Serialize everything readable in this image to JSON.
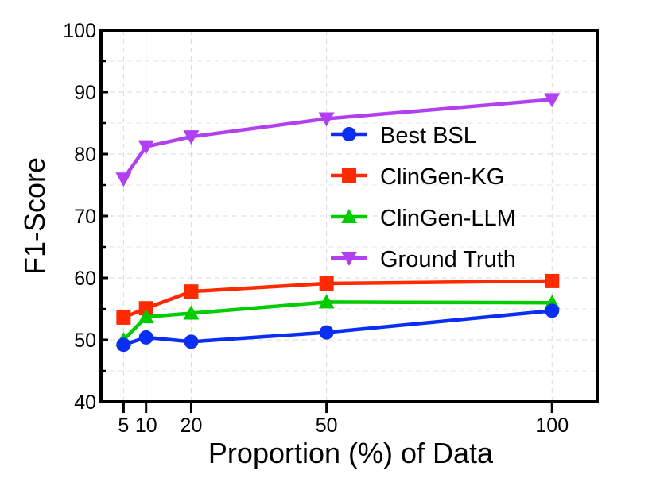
{
  "chart_data": {
    "type": "line",
    "xlabel": "Proportion (%) of Data",
    "ylabel": "F1-Score",
    "xlim": [
      0,
      110
    ],
    "ylim": [
      40,
      100
    ],
    "x_ticks": [
      5,
      10,
      20,
      50,
      100
    ],
    "x_tick_labels": [
      "5",
      "10",
      "20",
      "50",
      "100"
    ],
    "y_ticks": [
      40,
      50,
      60,
      70,
      80,
      90,
      100
    ],
    "y_tick_labels": [
      "40",
      "50",
      "60",
      "70",
      "80",
      "90",
      "100"
    ],
    "grid": true,
    "legend_position": "center-right",
    "series": [
      {
        "name": "Best BSL",
        "color": "#0a2ff2",
        "marker": "circle",
        "x": [
          5,
          10,
          20,
          50,
          100
        ],
        "values": [
          49.2,
          50.4,
          49.7,
          51.2,
          54.7
        ]
      },
      {
        "name": "ClinGen-KG",
        "color": "#ff2a00",
        "marker": "square",
        "x": [
          5,
          10,
          20,
          50,
          100
        ],
        "values": [
          53.6,
          55.1,
          57.8,
          59.1,
          59.5
        ]
      },
      {
        "name": "ClinGen-LLM",
        "color": "#00cc00",
        "marker": "triangle-up",
        "x": [
          5,
          10,
          20,
          50,
          100
        ],
        "values": [
          50.0,
          53.7,
          54.3,
          56.1,
          56.0
        ]
      },
      {
        "name": "Ground Truth",
        "color": "#b040f0",
        "marker": "triangle-down",
        "x": [
          5,
          10,
          20,
          50,
          100
        ],
        "values": [
          76.0,
          81.2,
          82.8,
          85.7,
          88.8
        ]
      }
    ]
  }
}
